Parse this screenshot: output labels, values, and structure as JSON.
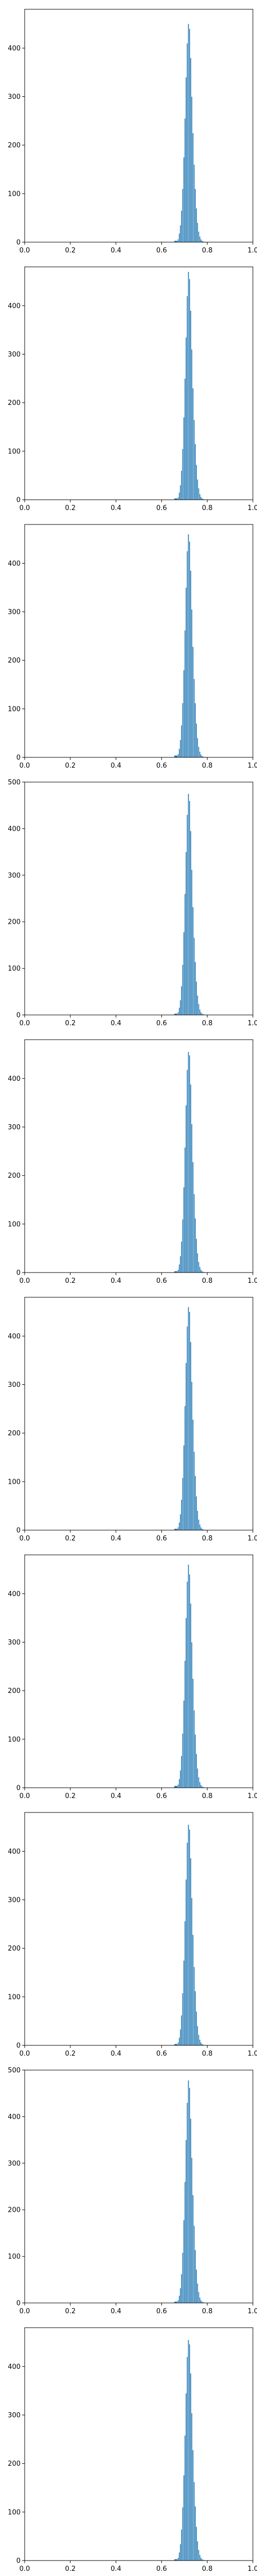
{
  "chart_data": [
    {
      "type": "histogram",
      "xlim": [
        0.0,
        1.0
      ],
      "ylim": [
        0,
        480
      ],
      "x_ticks": [
        "0.0",
        "0.2",
        "0.4",
        "0.6",
        "0.8",
        "1.0"
      ],
      "y_ticks": [
        "0",
        "100",
        "200",
        "300",
        "400"
      ],
      "bar_color": "#1f77b4",
      "bins": [
        0.655,
        0.67,
        0.675,
        0.68,
        0.685,
        0.69,
        0.695,
        0.7,
        0.705,
        0.71,
        0.715,
        0.72,
        0.725,
        0.73,
        0.735,
        0.74,
        0.745,
        0.75,
        0.755,
        0.76,
        0.765,
        0.77,
        0.775,
        0.78,
        0.785,
        0.79,
        0.795
      ],
      "counts": [
        3,
        6,
        18,
        35,
        65,
        110,
        175,
        255,
        340,
        410,
        450,
        440,
        380,
        300,
        225,
        160,
        110,
        70,
        40,
        22,
        12,
        6,
        3,
        2,
        1,
        1
      ]
    },
    {
      "type": "histogram",
      "xlim": [
        0.0,
        1.0
      ],
      "ylim": [
        0,
        480
      ],
      "x_ticks": [
        "0.0",
        "0.2",
        "0.4",
        "0.6",
        "0.8",
        "1.0"
      ],
      "y_ticks": [
        "0",
        "100",
        "200",
        "300",
        "400"
      ],
      "bar_color": "#1f77b4",
      "bins": [
        0.655,
        0.67,
        0.675,
        0.68,
        0.685,
        0.69,
        0.695,
        0.7,
        0.705,
        0.71,
        0.715,
        0.72,
        0.725,
        0.73,
        0.735,
        0.74,
        0.745,
        0.75,
        0.755,
        0.76,
        0.765,
        0.77,
        0.775,
        0.78,
        0.785,
        0.79,
        0.795
      ],
      "counts": [
        3,
        5,
        15,
        30,
        60,
        105,
        170,
        250,
        335,
        420,
        470,
        455,
        390,
        310,
        230,
        165,
        115,
        72,
        42,
        24,
        12,
        6,
        3,
        2,
        1,
        1
      ]
    },
    {
      "type": "histogram",
      "xlim": [
        0.0,
        1.0
      ],
      "ylim": [
        0,
        480
      ],
      "x_ticks": [
        "0.0",
        "0.2",
        "0.4",
        "0.6",
        "0.8",
        "1.0"
      ],
      "y_ticks": [
        "0",
        "100",
        "200",
        "300",
        "400"
      ],
      "bar_color": "#1f77b4",
      "bins": [
        0.655,
        0.67,
        0.675,
        0.68,
        0.685,
        0.69,
        0.695,
        0.7,
        0.705,
        0.71,
        0.715,
        0.72,
        0.725,
        0.73,
        0.735,
        0.74,
        0.745,
        0.75,
        0.755,
        0.76,
        0.765,
        0.77,
        0.775,
        0.78,
        0.785,
        0.79,
        0.795
      ],
      "counts": [
        4,
        7,
        18,
        36,
        66,
        112,
        180,
        262,
        350,
        425,
        460,
        445,
        385,
        305,
        228,
        162,
        112,
        70,
        40,
        22,
        12,
        6,
        3,
        2,
        1,
        1
      ]
    },
    {
      "type": "histogram",
      "xlim": [
        0.0,
        1.0
      ],
      "ylim": [
        0,
        500
      ],
      "x_ticks": [
        "0.0",
        "0.2",
        "0.4",
        "0.6",
        "0.8",
        "1.0"
      ],
      "y_ticks": [
        "0",
        "100",
        "200",
        "300",
        "400",
        "500"
      ],
      "bar_color": "#1f77b4",
      "bins": [
        0.655,
        0.67,
        0.675,
        0.68,
        0.685,
        0.69,
        0.695,
        0.7,
        0.705,
        0.71,
        0.715,
        0.72,
        0.725,
        0.73,
        0.735,
        0.74,
        0.745,
        0.75,
        0.755,
        0.76,
        0.765,
        0.77,
        0.775,
        0.78,
        0.785,
        0.79,
        0.795
      ],
      "counts": [
        3,
        6,
        16,
        32,
        62,
        108,
        178,
        260,
        350,
        430,
        475,
        460,
        395,
        312,
        232,
        166,
        114,
        72,
        42,
        24,
        12,
        6,
        3,
        2,
        1,
        1
      ]
    },
    {
      "type": "histogram",
      "xlim": [
        0.0,
        1.0
      ],
      "ylim": [
        0,
        480
      ],
      "x_ticks": [
        "0.0",
        "0.2",
        "0.4",
        "0.6",
        "0.8",
        "1.0"
      ],
      "y_ticks": [
        "0",
        "100",
        "200",
        "300",
        "400"
      ],
      "bar_color": "#1f77b4",
      "bins": [
        0.655,
        0.67,
        0.675,
        0.68,
        0.685,
        0.69,
        0.695,
        0.7,
        0.705,
        0.71,
        0.715,
        0.72,
        0.725,
        0.73,
        0.735,
        0.74,
        0.745,
        0.75,
        0.755,
        0.76,
        0.765,
        0.77,
        0.775,
        0.78,
        0.785,
        0.79,
        0.795
      ],
      "counts": [
        3,
        6,
        17,
        34,
        64,
        110,
        176,
        258,
        345,
        418,
        455,
        448,
        388,
        306,
        228,
        162,
        112,
        70,
        40,
        22,
        12,
        6,
        3,
        2,
        1,
        1
      ]
    },
    {
      "type": "histogram",
      "xlim": [
        0.0,
        1.0
      ],
      "ylim": [
        0,
        480
      ],
      "x_ticks": [
        "0.0",
        "0.2",
        "0.4",
        "0.6",
        "0.8",
        "1.0"
      ],
      "y_ticks": [
        "0",
        "100",
        "200",
        "300",
        "400"
      ],
      "bar_color": "#1f77b4",
      "bins": [
        0.655,
        0.67,
        0.675,
        0.68,
        0.685,
        0.69,
        0.695,
        0.7,
        0.705,
        0.71,
        0.715,
        0.72,
        0.725,
        0.73,
        0.735,
        0.74,
        0.745,
        0.75,
        0.755,
        0.76,
        0.765,
        0.77,
        0.775,
        0.78,
        0.785,
        0.79,
        0.795
      ],
      "counts": [
        3,
        6,
        16,
        33,
        63,
        108,
        175,
        256,
        345,
        420,
        460,
        450,
        388,
        306,
        228,
        162,
        112,
        70,
        40,
        22,
        12,
        6,
        3,
        2,
        1,
        1
      ]
    },
    {
      "type": "histogram",
      "xlim": [
        0.0,
        1.0
      ],
      "ylim": [
        0,
        480
      ],
      "x_ticks": [
        "0.0",
        "0.2",
        "0.4",
        "0.6",
        "0.8",
        "1.0"
      ],
      "y_ticks": [
        "0",
        "100",
        "200",
        "300",
        "400"
      ],
      "bar_color": "#1f77b4",
      "bins": [
        0.655,
        0.67,
        0.675,
        0.68,
        0.685,
        0.69,
        0.695,
        0.7,
        0.705,
        0.71,
        0.715,
        0.72,
        0.725,
        0.73,
        0.735,
        0.74,
        0.745,
        0.75,
        0.755,
        0.76,
        0.765,
        0.77,
        0.775,
        0.78,
        0.785,
        0.79,
        0.795
      ],
      "counts": [
        4,
        7,
        18,
        36,
        66,
        112,
        180,
        262,
        350,
        425,
        460,
        440,
        380,
        300,
        225,
        160,
        110,
        70,
        40,
        22,
        12,
        6,
        3,
        2,
        1,
        1
      ]
    },
    {
      "type": "histogram",
      "xlim": [
        0.0,
        1.0
      ],
      "ylim": [
        0,
        480
      ],
      "x_ticks": [
        "0.0",
        "0.2",
        "0.4",
        "0.6",
        "0.8",
        "1.0"
      ],
      "y_ticks": [
        "0",
        "100",
        "200",
        "300",
        "400"
      ],
      "bar_color": "#1f77b4",
      "bins": [
        0.655,
        0.67,
        0.675,
        0.68,
        0.685,
        0.69,
        0.695,
        0.7,
        0.705,
        0.71,
        0.715,
        0.72,
        0.725,
        0.73,
        0.735,
        0.74,
        0.745,
        0.75,
        0.755,
        0.76,
        0.765,
        0.77,
        0.775,
        0.78,
        0.785,
        0.79,
        0.795
      ],
      "counts": [
        3,
        6,
        16,
        33,
        62,
        108,
        175,
        256,
        342,
        418,
        455,
        445,
        386,
        304,
        228,
        162,
        112,
        70,
        40,
        22,
        12,
        6,
        3,
        2,
        1,
        1
      ]
    },
    {
      "type": "histogram",
      "xlim": [
        0.0,
        1.0
      ],
      "ylim": [
        0,
        500
      ],
      "x_ticks": [
        "0.0",
        "0.2",
        "0.4",
        "0.6",
        "0.8",
        "1.0"
      ],
      "y_ticks": [
        "0",
        "100",
        "200",
        "300",
        "400",
        "500"
      ],
      "bar_color": "#1f77b4",
      "bins": [
        0.655,
        0.67,
        0.675,
        0.68,
        0.685,
        0.69,
        0.695,
        0.7,
        0.705,
        0.71,
        0.715,
        0.72,
        0.725,
        0.73,
        0.735,
        0.74,
        0.745,
        0.75,
        0.755,
        0.76,
        0.765,
        0.77,
        0.775,
        0.78,
        0.785,
        0.79,
        0.795
      ],
      "counts": [
        3,
        6,
        16,
        32,
        62,
        108,
        178,
        260,
        350,
        430,
        478,
        462,
        396,
        312,
        232,
        166,
        114,
        72,
        42,
        24,
        12,
        6,
        3,
        2,
        1,
        1
      ]
    },
    {
      "type": "histogram",
      "xlim": [
        0.0,
        1.0
      ],
      "ylim": [
        0,
        480
      ],
      "x_ticks": [
        "0.0",
        "0.2",
        "0.4",
        "0.6",
        "0.8",
        "1.0"
      ],
      "y_ticks": [
        "0",
        "100",
        "200",
        "300",
        "400"
      ],
      "bar_color": "#1f77b4",
      "bins": [
        0.655,
        0.67,
        0.675,
        0.68,
        0.685,
        0.69,
        0.695,
        0.7,
        0.705,
        0.71,
        0.715,
        0.72,
        0.725,
        0.73,
        0.735,
        0.74,
        0.745,
        0.75,
        0.755,
        0.76,
        0.765,
        0.77,
        0.775,
        0.78,
        0.785,
        0.79,
        0.795
      ],
      "counts": [
        3,
        6,
        17,
        34,
        64,
        110,
        176,
        258,
        345,
        420,
        455,
        446,
        386,
        304,
        228,
        162,
        112,
        70,
        40,
        22,
        12,
        6,
        3,
        2,
        1,
        1
      ]
    }
  ]
}
